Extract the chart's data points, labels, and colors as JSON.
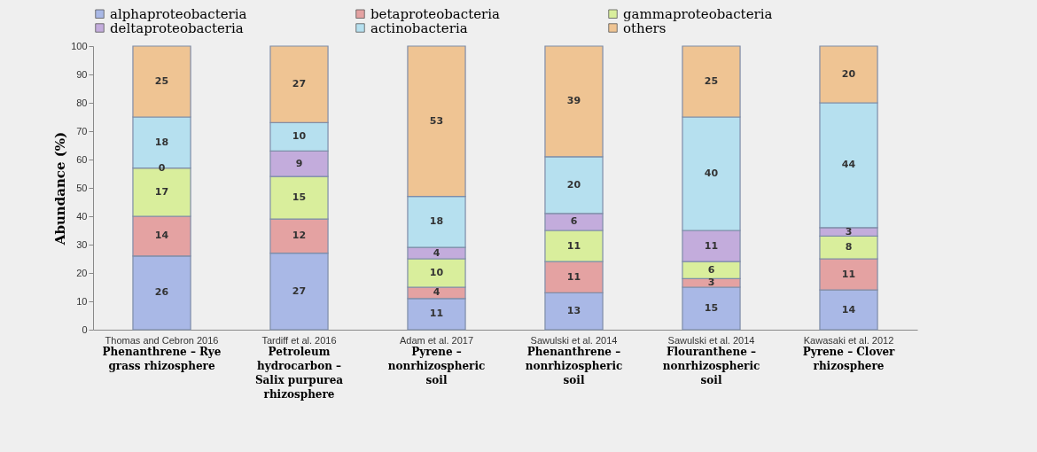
{
  "chart_data": {
    "type": "bar",
    "stacked": true,
    "ylabel": "Abundance (%)",
    "ylim": [
      0,
      100
    ],
    "yticks": [
      0,
      10,
      20,
      30,
      40,
      50,
      60,
      70,
      80,
      90,
      100
    ],
    "grid": false,
    "legend": "top",
    "categories": [
      "Thomas and Cebron 2016",
      "Tardiff et al. 2016",
      "Adam et al. 2017",
      "Sawulski et al. 2014",
      "Sawulski et al. 2014",
      "Kawasaki et al. 2012"
    ],
    "series": [
      {
        "name": "alphaproteobacteria",
        "color": "#a9b8e6",
        "values": [
          26,
          27,
          11,
          13,
          15,
          14
        ],
        "value_labels": [
          "26",
          "27",
          "11",
          "13",
          "15",
          "14"
        ]
      },
      {
        "name": "betaproteobacteria",
        "color": "#e4a2a2",
        "values": [
          14,
          12,
          4,
          11,
          3,
          11
        ],
        "value_labels": [
          "14",
          "12",
          "4",
          "11",
          "3",
          "11"
        ]
      },
      {
        "name": "gammaproteobacteria",
        "color": "#d9ee9c",
        "values": [
          17,
          15,
          10,
          11,
          6,
          8
        ],
        "value_labels": [
          "17",
          "15",
          "10",
          "11",
          "6",
          "8"
        ]
      },
      {
        "name": "deltaproteobacteria",
        "color": "#c3acdc",
        "values": [
          0,
          9,
          4,
          6,
          11,
          3
        ],
        "value_labels": [
          null,
          "9",
          "4",
          "6",
          "11",
          "3"
        ]
      },
      {
        "name": "actinobacteria",
        "color": "#b6e0ef",
        "values": [
          18,
          10,
          18,
          20,
          40,
          44
        ],
        "value_labels": [
          "18",
          "10",
          "18",
          "20",
          "40",
          "44"
        ]
      },
      {
        "name": "others",
        "color": "#efc493",
        "values": [
          25,
          27,
          53,
          39,
          25,
          20
        ],
        "value_labels": [
          "25",
          "27",
          "53",
          "39",
          "25",
          "20"
        ]
      }
    ],
    "annotations": [
      "Phenanthrene – Rye grass rhizosphere",
      "Petroleum hydrocarbon – Salix purpurea rhizosphere",
      "Pyrene – nonrhizospheric soil",
      "Phenanthrene – nonrhizospheric soil",
      "Flouranthene – nonrhizospheric soil",
      "Pyrene – Clover rhizosphere",
      {
        "text": "0",
        "x": "Thomas and Cebron 2016",
        "y": 57
      }
    ]
  }
}
